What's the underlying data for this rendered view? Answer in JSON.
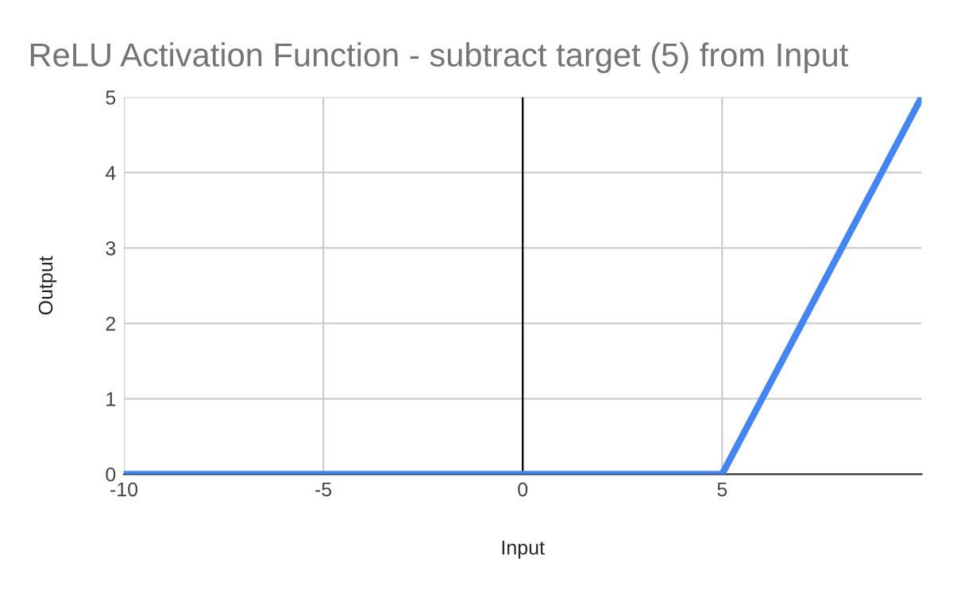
{
  "chart_data": {
    "type": "line",
    "title": "ReLU Activation Function - subtract target (5) from Input",
    "xlabel": "Input",
    "ylabel": "Output",
    "x": [
      -10,
      5,
      10
    ],
    "series": [
      {
        "color": "#4285f4",
        "values": [
          0,
          0,
          5
        ]
      }
    ],
    "xlim": [
      -10,
      10
    ],
    "xticks": [
      -10,
      -5,
      0,
      5
    ],
    "ylim": [
      0,
      5
    ],
    "yticks": [
      0,
      1,
      2,
      3,
      4,
      5
    ],
    "ref_lines": [
      {
        "axis": "x",
        "value": 0,
        "color": "#000000"
      }
    ],
    "grid": true,
    "legend": false,
    "marker": "none",
    "line_style": "solid"
  }
}
